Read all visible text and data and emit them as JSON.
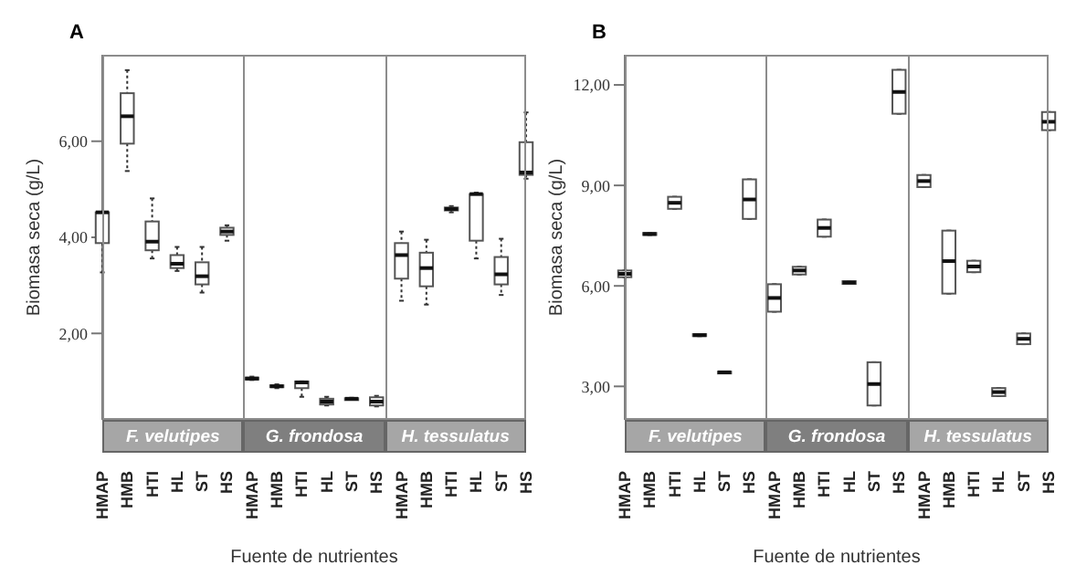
{
  "chart_data": [
    {
      "type": "box",
      "title": "A",
      "xlabel": "Fuente de nutrientes",
      "ylabel": "Biomasa seca (g/L)",
      "annotations": [
        "F. velutipes",
        "G. frondosa",
        "H. tessulatus"
      ],
      "categories": [
        "HMAP",
        "HMB",
        "HTI",
        "HL",
        "ST",
        "HS",
        "HMAP",
        "HMB",
        "HTI",
        "HL",
        "ST",
        "HS",
        "HMAP",
        "HMB",
        "HTI",
        "HL",
        "ST",
        "HS"
      ],
      "ylim": [
        0.2,
        7.8
      ],
      "yticks": [
        {
          "value": 2,
          "label": "2,00"
        },
        {
          "value": 4,
          "label": "4,00"
        },
        {
          "value": 6,
          "label": "6,00"
        }
      ],
      "boxes": [
        {
          "low": 3.27,
          "q1": 3.88,
          "median": 4.52,
          "q3": 4.52,
          "high": 4.52
        },
        {
          "low": 5.38,
          "q1": 5.95,
          "median": 6.52,
          "q3": 7.0,
          "high": 7.48
        },
        {
          "low": 3.56,
          "q1": 3.73,
          "median": 3.91,
          "q3": 4.33,
          "high": 4.81
        },
        {
          "low": 3.3,
          "q1": 3.36,
          "median": 3.45,
          "q3": 3.63,
          "high": 3.8
        },
        {
          "low": 2.85,
          "q1": 3.02,
          "median": 3.19,
          "q3": 3.48,
          "high": 3.8
        },
        {
          "low": 3.93,
          "q1": 4.05,
          "median": 4.12,
          "q3": 4.2,
          "high": 4.25
        },
        {
          "low": 1.03,
          "q1": 1.04,
          "median": 1.06,
          "q3": 1.08,
          "high": 1.1
        },
        {
          "low": 0.86,
          "q1": 0.88,
          "median": 0.9,
          "q3": 0.92,
          "high": 0.94
        },
        {
          "low": 0.68,
          "q1": 0.86,
          "median": 0.98,
          "q3": 1.0,
          "high": 1.0
        },
        {
          "low": 0.5,
          "q1": 0.52,
          "median": 0.58,
          "q3": 0.64,
          "high": 0.68
        },
        {
          "low": 0.62,
          "q1": 0.63,
          "median": 0.64,
          "q3": 0.65,
          "high": 0.66
        },
        {
          "low": 0.48,
          "q1": 0.5,
          "median": 0.58,
          "q3": 0.67,
          "high": 0.7
        },
        {
          "low": 2.68,
          "q1": 3.14,
          "median": 3.63,
          "q3": 3.88,
          "high": 4.12
        },
        {
          "low": 2.6,
          "q1": 2.98,
          "median": 3.36,
          "q3": 3.68,
          "high": 3.95
        },
        {
          "low": 4.52,
          "q1": 4.56,
          "median": 4.59,
          "q3": 4.62,
          "high": 4.65
        },
        {
          "low": 3.56,
          "q1": 3.93,
          "median": 4.9,
          "q3": 4.9,
          "high": 4.93
        },
        {
          "low": 2.8,
          "q1": 3.02,
          "median": 3.23,
          "q3": 3.59,
          "high": 3.97
        },
        {
          "low": 5.22,
          "q1": 5.3,
          "median": 5.35,
          "q3": 5.98,
          "high": 6.6
        }
      ]
    },
    {
      "type": "box",
      "title": "B",
      "xlabel": "Fuente de nutrientes",
      "ylabel": "Biomasa seca (g/L)",
      "annotations": [
        "F. velutipes",
        "G. frondosa",
        "H. tessulatus"
      ],
      "categories": [
        "HMAP",
        "HMB",
        "HTI",
        "HL",
        "ST",
        "HS",
        "HMAP",
        "HMB",
        "HTI",
        "HL",
        "ST",
        "HS",
        "HMAP",
        "HMB",
        "HTI",
        "HL",
        "ST",
        "HS"
      ],
      "ylim": [
        2,
        12.9
      ],
      "yticks": [
        {
          "value": 3,
          "label": "3,00"
        },
        {
          "value": 6,
          "label": "6,00"
        },
        {
          "value": 9,
          "label": "9,00"
        },
        {
          "value": 12,
          "label": "12,00"
        }
      ],
      "boxes": [
        {
          "low": 6.26,
          "q1": 6.26,
          "median": 6.36,
          "q3": 6.46,
          "high": 6.46
        },
        {
          "low": 7.52,
          "q1": 7.52,
          "median": 7.55,
          "q3": 7.58,
          "high": 7.58
        },
        {
          "low": 8.3,
          "q1": 8.3,
          "median": 8.48,
          "q3": 8.66,
          "high": 8.66
        },
        {
          "low": 4.5,
          "q1": 4.5,
          "median": 4.53,
          "q3": 4.56,
          "high": 4.56
        },
        {
          "low": 3.4,
          "q1": 3.4,
          "median": 3.42,
          "q3": 3.44,
          "high": 3.44
        },
        {
          "low": 8.0,
          "q1": 8.0,
          "median": 8.58,
          "q3": 9.18,
          "high": 9.18
        },
        {
          "low": 5.23,
          "q1": 5.23,
          "median": 5.64,
          "q3": 6.05,
          "high": 6.05
        },
        {
          "low": 6.34,
          "q1": 6.34,
          "median": 6.46,
          "q3": 6.57,
          "high": 6.57
        },
        {
          "low": 7.47,
          "q1": 7.47,
          "median": 7.73,
          "q3": 7.98,
          "high": 7.98
        },
        {
          "low": 6.06,
          "q1": 6.06,
          "median": 6.1,
          "q3": 6.14,
          "high": 6.14
        },
        {
          "low": 2.43,
          "q1": 2.43,
          "median": 3.07,
          "q3": 3.72,
          "high": 3.72
        },
        {
          "low": 11.14,
          "q1": 11.14,
          "median": 11.79,
          "q3": 12.45,
          "high": 12.45
        },
        {
          "low": 8.95,
          "q1": 8.95,
          "median": 9.13,
          "q3": 9.31,
          "high": 9.31
        },
        {
          "low": 5.77,
          "q1": 5.77,
          "median": 6.74,
          "q3": 7.65,
          "high": 7.65
        },
        {
          "low": 6.41,
          "q1": 6.41,
          "median": 6.58,
          "q3": 6.75,
          "high": 6.75
        },
        {
          "low": 2.71,
          "q1": 2.71,
          "median": 2.83,
          "q3": 2.95,
          "high": 2.95
        },
        {
          "low": 4.26,
          "q1": 4.26,
          "median": 4.42,
          "q3": 4.58,
          "high": 4.58
        },
        {
          "low": 10.65,
          "q1": 10.65,
          "median": 10.9,
          "q3": 11.19,
          "high": 11.19
        }
      ]
    }
  ]
}
